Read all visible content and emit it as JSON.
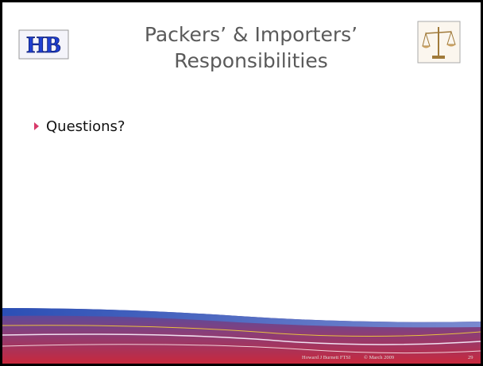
{
  "header": {
    "logo": "HB",
    "title": [
      "Packers’ & Importers’",
      "Responsibilities"
    ]
  },
  "bullets": [
    "Questions?"
  ],
  "footer": {
    "author": "Howard J Burnett FTSI",
    "copyright": "© March 2009",
    "page": "29"
  }
}
